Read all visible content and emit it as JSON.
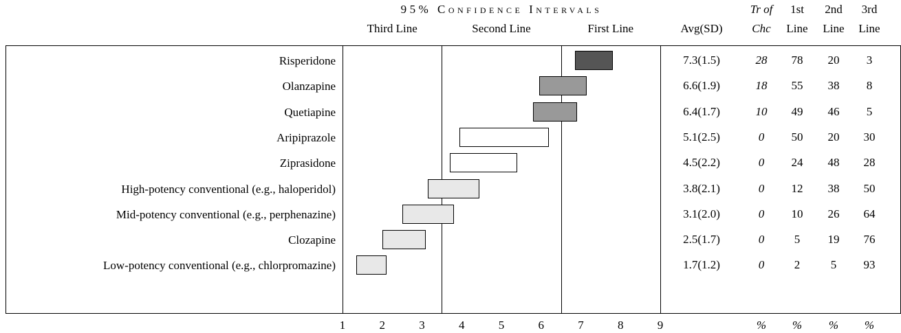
{
  "chart_data": {
    "type": "interval",
    "title": "95% Confidence Intervals",
    "zones": [
      "Third Line",
      "Second Line",
      "First Line"
    ],
    "zone_bounds": [
      3.5,
      6.5
    ],
    "categories": [
      "Risperidone",
      "Olanzapine",
      "Quetiapine",
      "Aripiprazole",
      "Ziprasidone",
      "High-potency conventional (e.g., haloperidol)",
      "Mid-potency conventional (e.g., perphenazine)",
      "Clozapine",
      "Low-potency conventional (e.g., chlorpromazine)"
    ],
    "low": [
      6.85,
      5.95,
      5.8,
      3.95,
      3.7,
      3.15,
      2.5,
      2.0,
      1.35
    ],
    "high": [
      7.8,
      7.15,
      6.9,
      6.2,
      5.4,
      4.45,
      3.8,
      3.1,
      2.1
    ],
    "colors": [
      "#555555",
      "#999999",
      "#999999",
      "#ffffff",
      "#ffffff",
      "#e8e8e8",
      "#e8e8e8",
      "#e8e8e8",
      "#e8e8e8"
    ],
    "xlim": [
      1,
      9
    ],
    "xticks": [
      1,
      2,
      3,
      4,
      5,
      6,
      7,
      8,
      9
    ]
  },
  "table": {
    "columns": [
      [
        "Avg(SD)"
      ],
      [
        "Tr of",
        "Chc"
      ],
      [
        "1st",
        "Line"
      ],
      [
        "2nd",
        "Line"
      ],
      [
        "3rd",
        "Line"
      ]
    ],
    "rows": [
      [
        "7.3(1.5)",
        28,
        78,
        20,
        3
      ],
      [
        "6.6(1.9)",
        18,
        55,
        38,
        8
      ],
      [
        "6.4(1.7)",
        10,
        49,
        46,
        5
      ],
      [
        "5.1(2.5)",
        0,
        50,
        20,
        30
      ],
      [
        "4.5(2.2)",
        0,
        24,
        48,
        28
      ],
      [
        "3.8(2.1)",
        0,
        12,
        38,
        50
      ],
      [
        "3.1(2.0)",
        0,
        10,
        26,
        64
      ],
      [
        "2.5(1.7)",
        0,
        5,
        19,
        76
      ],
      [
        "1.7(1.2)",
        0,
        2,
        5,
        93
      ]
    ],
    "units": [
      "%",
      "%",
      "%",
      "%"
    ]
  }
}
